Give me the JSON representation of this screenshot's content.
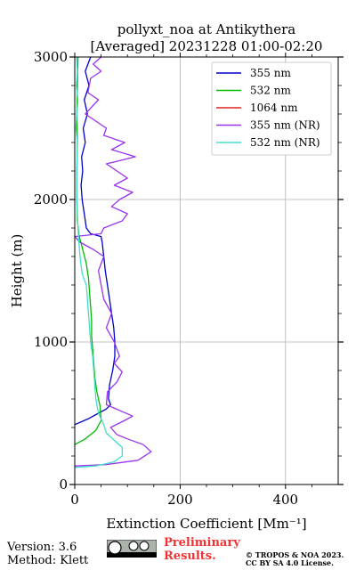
{
  "chart_data": {
    "type": "line",
    "title_line1": "pollyxt_noa at Antikythera",
    "title_line2": "[Averaged] 20231228 01:00-02:20",
    "xlabel": "Extinction Coefficient [Mm⁻¹]",
    "ylabel": "Height (m)",
    "xlim": [
      0,
      500
    ],
    "ylim": [
      0,
      3000
    ],
    "xticks": [
      0,
      200,
      400
    ],
    "yticks": [
      0,
      1000,
      2000,
      3000
    ],
    "xtick_labels": [
      "0",
      "200",
      "400"
    ],
    "ytick_labels": [
      "0",
      "1000",
      "2000",
      "3000"
    ],
    "grid": true,
    "legend_position": "top-right",
    "series": [
      {
        "name": "355 nm",
        "color": "#0000cc",
        "points": [
          [
            0,
            420
          ],
          [
            25,
            460
          ],
          [
            45,
            500
          ],
          [
            60,
            530
          ],
          [
            68,
            560
          ],
          [
            64,
            600
          ],
          [
            66,
            700
          ],
          [
            72,
            800
          ],
          [
            76,
            900
          ],
          [
            76,
            1000
          ],
          [
            74,
            1100
          ],
          [
            70,
            1200
          ],
          [
            66,
            1300
          ],
          [
            62,
            1400
          ],
          [
            58,
            1500
          ],
          [
            55,
            1600
          ],
          [
            52,
            1700
          ],
          [
            50,
            1740
          ],
          [
            30,
            1760
          ],
          [
            22,
            1800
          ],
          [
            18,
            1900
          ],
          [
            14,
            2000
          ],
          [
            12,
            2100
          ],
          [
            15,
            2200
          ],
          [
            13,
            2300
          ],
          [
            20,
            2400
          ],
          [
            16,
            2500
          ],
          [
            24,
            2600
          ],
          [
            18,
            2700
          ],
          [
            27,
            2800
          ],
          [
            20,
            2900
          ],
          [
            30,
            3000
          ]
        ]
      },
      {
        "name": "532 nm",
        "color": "#00bb00",
        "points": [
          [
            0,
            280
          ],
          [
            20,
            320
          ],
          [
            40,
            380
          ],
          [
            50,
            450
          ],
          [
            48,
            550
          ],
          [
            42,
            650
          ],
          [
            38,
            750
          ],
          [
            36,
            850
          ],
          [
            34,
            950
          ],
          [
            32,
            1050
          ],
          [
            32,
            1150
          ],
          [
            30,
            1250
          ],
          [
            28,
            1350
          ],
          [
            26,
            1450
          ],
          [
            22,
            1550
          ],
          [
            15,
            1650
          ],
          [
            8,
            1750
          ],
          [
            5,
            1850
          ],
          [
            4,
            2000
          ],
          [
            4,
            2200
          ],
          [
            5,
            2400
          ],
          [
            4,
            2600
          ],
          [
            5,
            2800
          ],
          [
            6,
            3000
          ]
        ]
      },
      {
        "name": "1064 nm",
        "color": "#dd2222",
        "points": []
      },
      {
        "name": "355 nm (NR)",
        "color": "#9933ee",
        "points": [
          [
            0,
            130
          ],
          [
            60,
            140
          ],
          [
            120,
            170
          ],
          [
            145,
            230
          ],
          [
            130,
            280
          ],
          [
            100,
            320
          ],
          [
            80,
            350
          ],
          [
            68,
            400
          ],
          [
            95,
            450
          ],
          [
            110,
            480
          ],
          [
            85,
            520
          ],
          [
            60,
            560
          ],
          [
            62,
            650
          ],
          [
            80,
            720
          ],
          [
            90,
            790
          ],
          [
            75,
            850
          ],
          [
            85,
            900
          ],
          [
            75,
            1000
          ],
          [
            60,
            1100
          ],
          [
            70,
            1200
          ],
          [
            55,
            1300
          ],
          [
            50,
            1400
          ],
          [
            45,
            1500
          ],
          [
            55,
            1600
          ],
          [
            35,
            1650
          ],
          [
            10,
            1700
          ],
          [
            0,
            1740
          ],
          [
            50,
            1760
          ],
          [
            55,
            1800
          ],
          [
            90,
            1850
          ],
          [
            100,
            1900
          ],
          [
            70,
            1950
          ],
          [
            85,
            2000
          ],
          [
            110,
            2050
          ],
          [
            75,
            2100
          ],
          [
            100,
            2150
          ],
          [
            80,
            2200
          ],
          [
            60,
            2250
          ],
          [
            115,
            2300
          ],
          [
            70,
            2350
          ],
          [
            95,
            2400
          ],
          [
            55,
            2450
          ],
          [
            60,
            2500
          ],
          [
            40,
            2550
          ],
          [
            20,
            2600
          ],
          [
            45,
            2700
          ],
          [
            25,
            2750
          ],
          [
            30,
            2850
          ],
          [
            50,
            2900
          ],
          [
            35,
            2950
          ],
          [
            50,
            3000
          ]
        ]
      },
      {
        "name": "532 nm (NR)",
        "color": "#44ddcc",
        "points": [
          [
            0,
            120
          ],
          [
            40,
            130
          ],
          [
            75,
            160
          ],
          [
            90,
            200
          ],
          [
            90,
            260
          ],
          [
            75,
            310
          ],
          [
            60,
            360
          ],
          [
            55,
            420
          ],
          [
            45,
            500
          ],
          [
            40,
            600
          ],
          [
            38,
            700
          ],
          [
            36,
            800
          ],
          [
            34,
            900
          ],
          [
            30,
            1000
          ],
          [
            28,
            1100
          ],
          [
            26,
            1200
          ],
          [
            24,
            1300
          ],
          [
            22,
            1400
          ],
          [
            14,
            1480
          ],
          [
            10,
            1600
          ],
          [
            8,
            1700
          ],
          [
            6,
            1800
          ],
          [
            5,
            1900
          ],
          [
            4,
            2000
          ],
          [
            4,
            2200
          ],
          [
            5,
            2400
          ],
          [
            2,
            2500
          ],
          [
            4,
            2600
          ],
          [
            6,
            2700
          ],
          [
            3,
            2800
          ],
          [
            5,
            2900
          ],
          [
            3,
            3000
          ]
        ]
      }
    ]
  },
  "footer": {
    "version": "Version: 3.6",
    "method": "Method: Klett",
    "preliminary_line1": "Preliminary",
    "preliminary_line2": "Results.",
    "copyright_line1": "© TROPOS & NOA 2023.",
    "copyright_line2": "CC BY SA 4.0 License."
  }
}
